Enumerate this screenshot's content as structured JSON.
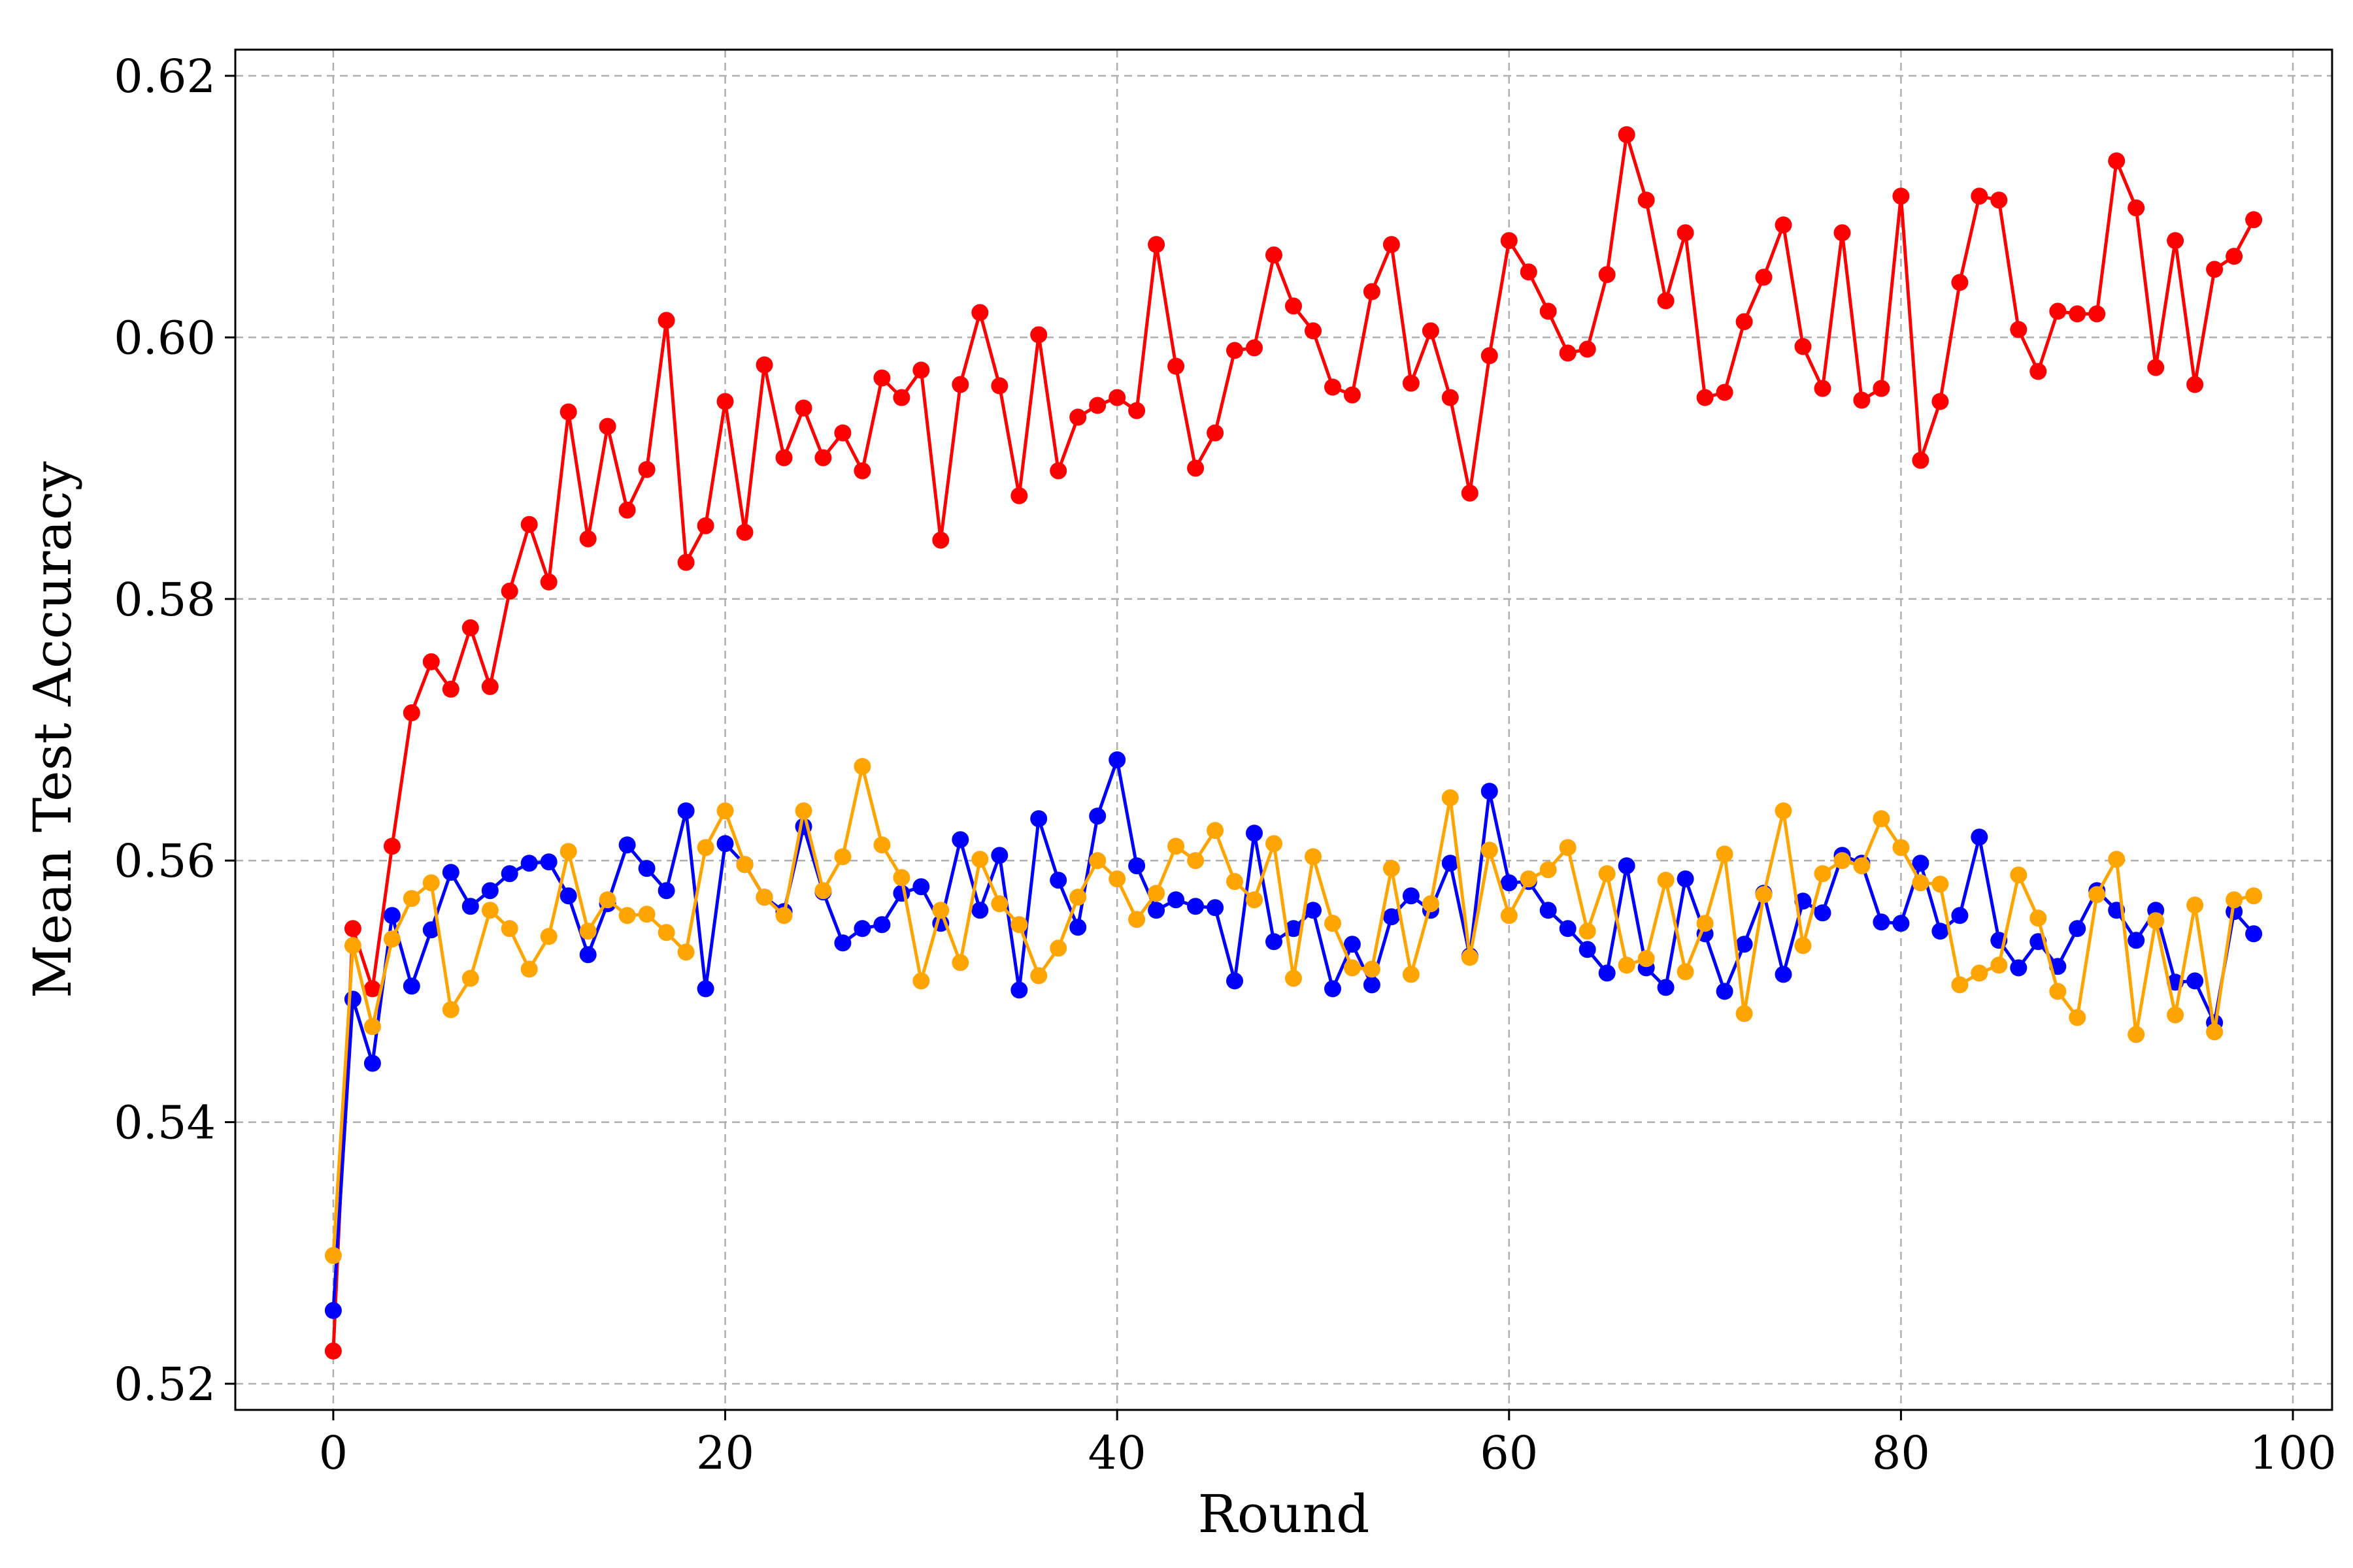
{
  "chart_data": {
    "type": "line",
    "xlabel": "Round",
    "ylabel": "Mean Test Accuracy",
    "xlim": [
      -5,
      102
    ],
    "ylim": [
      0.518,
      0.622
    ],
    "xticks": [
      0,
      20,
      40,
      60,
      80,
      100
    ],
    "yticks": [
      0.52,
      0.54,
      0.56,
      0.58,
      0.6,
      0.62
    ],
    "xtick_labels": [
      "0",
      "20",
      "40",
      "60",
      "80",
      "100"
    ],
    "ytick_labels": [
      "0.52",
      "0.54",
      "0.56",
      "0.58",
      "0.60",
      "0.62"
    ],
    "grid": true,
    "legend": "none",
    "series": [
      {
        "color": "#ff0000",
        "values": [
          0.5225,
          0.5548,
          0.5502,
          0.5611,
          0.5713,
          0.5752,
          0.5731,
          0.5778,
          0.5733,
          0.5806,
          0.5857,
          0.5813,
          0.5943,
          0.5846,
          0.5932,
          0.5868,
          0.5899,
          0.6013,
          0.5828,
          0.5856,
          0.5951,
          0.5851,
          0.5979,
          0.5908,
          0.5946,
          0.5908,
          0.5927,
          0.5898,
          0.5969,
          0.5954,
          0.5975,
          0.5845,
          0.5964,
          0.6019,
          0.5963,
          0.5879,
          0.6002,
          0.5898,
          0.5939,
          0.5948,
          0.5954,
          0.5944,
          0.6071,
          0.5978,
          0.59,
          0.5927,
          0.599,
          0.5992,
          0.6063,
          0.6024,
          0.6005,
          0.5962,
          0.5956,
          0.6035,
          0.6071,
          0.5965,
          0.6005,
          0.5954,
          0.5881,
          0.5986,
          0.6074,
          0.605,
          0.602,
          0.5988,
          0.5991,
          0.6048,
          0.6155,
          0.6105,
          0.6028,
          0.608,
          0.5954,
          0.5958,
          0.6012,
          0.6046,
          0.6086,
          0.5993,
          0.5961,
          0.608,
          0.5952,
          0.5961,
          0.6108,
          0.5906,
          0.5951,
          0.6042,
          0.6108,
          0.6105,
          0.6006,
          0.5974,
          0.602,
          0.6018,
          0.6018,
          0.6135,
          0.6099,
          0.5977,
          0.6074,
          0.5964,
          0.6052,
          0.6062,
          0.609
        ]
      },
      {
        "color": "#0000ff",
        "values": [
          0.5256,
          0.5494,
          0.5445,
          0.5558,
          0.5504,
          0.5547,
          0.5591,
          0.5565,
          0.5577,
          0.559,
          0.5598,
          0.5599,
          0.5573,
          0.5528,
          0.5567,
          0.5612,
          0.5594,
          0.5577,
          0.5638,
          0.5502,
          0.5613,
          0.5597,
          0.5572,
          0.5561,
          0.5626,
          0.5576,
          0.5537,
          0.5548,
          0.5551,
          0.5575,
          0.558,
          0.5552,
          0.5616,
          0.5562,
          0.5604,
          0.5501,
          0.5632,
          0.5585,
          0.5549,
          0.5634,
          0.5677,
          0.5596,
          0.5562,
          0.557,
          0.5565,
          0.5564,
          0.5508,
          0.5621,
          0.5538,
          0.5548,
          0.5562,
          0.5502,
          0.5536,
          0.5505,
          0.5557,
          0.5573,
          0.5562,
          0.5598,
          0.5527,
          0.5653,
          0.5583,
          0.5584,
          0.5562,
          0.5548,
          0.5532,
          0.5514,
          0.5596,
          0.5518,
          0.5503,
          0.5586,
          0.5544,
          0.55,
          0.5536,
          0.5575,
          0.5513,
          0.5569,
          0.556,
          0.5604,
          0.5598,
          0.5553,
          0.5552,
          0.5598,
          0.5546,
          0.5558,
          0.5618,
          0.5539,
          0.5518,
          0.5538,
          0.5519,
          0.5548,
          0.5577,
          0.5562,
          0.5539,
          0.5562,
          0.5507,
          0.5508,
          0.5476,
          0.5561,
          0.5544
        ]
      },
      {
        "color": "#ffa500",
        "values": [
          0.5298,
          0.5535,
          0.5473,
          0.554,
          0.5571,
          0.5583,
          0.5486,
          0.551,
          0.5562,
          0.5548,
          0.5517,
          0.5542,
          0.5607,
          0.5546,
          0.557,
          0.5558,
          0.5559,
          0.5545,
          0.553,
          0.561,
          0.5638,
          0.5597,
          0.5572,
          0.5558,
          0.5638,
          0.5577,
          0.5603,
          0.5672,
          0.5612,
          0.5587,
          0.5508,
          0.5562,
          0.5522,
          0.5601,
          0.5567,
          0.5551,
          0.5512,
          0.5533,
          0.5572,
          0.56,
          0.5586,
          0.5555,
          0.5575,
          0.5611,
          0.56,
          0.5623,
          0.5584,
          0.557,
          0.5613,
          0.551,
          0.5603,
          0.5552,
          0.5518,
          0.5517,
          0.5594,
          0.5513,
          0.5567,
          0.5648,
          0.5526,
          0.5608,
          0.5558,
          0.5586,
          0.5593,
          0.561,
          0.5546,
          0.559,
          0.552,
          0.5525,
          0.5585,
          0.5515,
          0.5552,
          0.5605,
          0.5483,
          0.5574,
          0.5638,
          0.5535,
          0.559,
          0.56,
          0.5596,
          0.5632,
          0.561,
          0.5583,
          0.5582,
          0.5505,
          0.5514,
          0.552,
          0.5589,
          0.5556,
          0.55,
          0.548,
          0.5574,
          0.5601,
          0.5467,
          0.5554,
          0.5482,
          0.5566,
          0.5469,
          0.557,
          0.5573
        ]
      }
    ]
  }
}
